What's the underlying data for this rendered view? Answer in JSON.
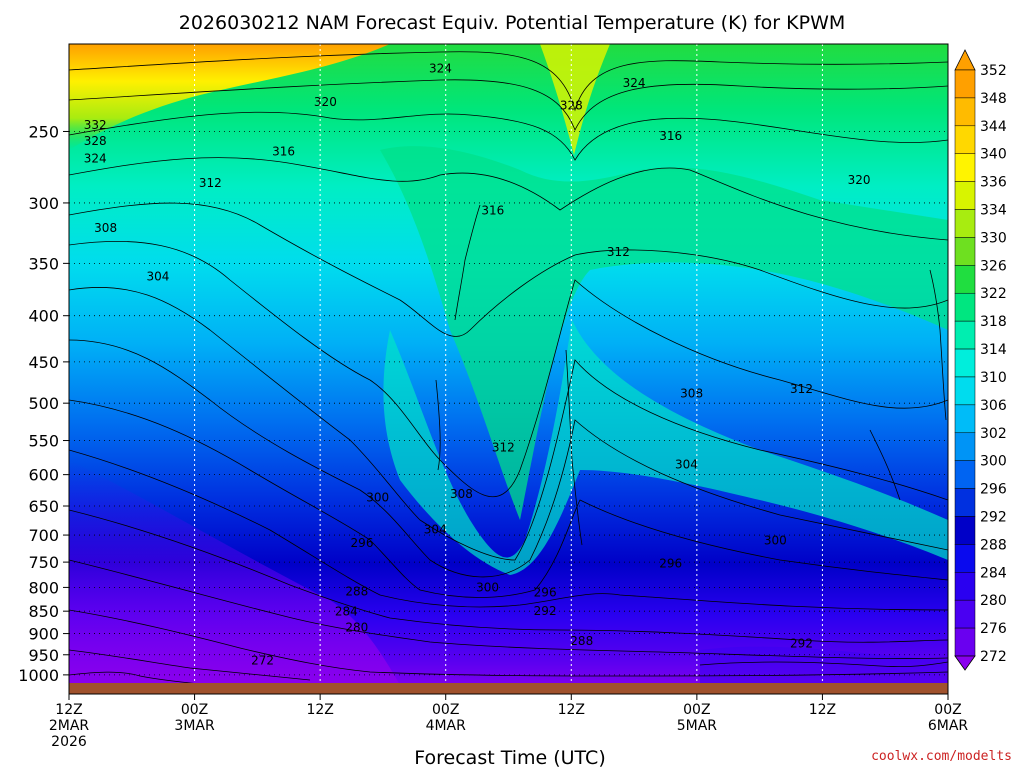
{
  "title": "2026030212 NAM Forecast Equiv. Potential Temperature (K) for KPWM",
  "xlabel": "Forecast Time (UTC)",
  "credit": "coolwx.com/modelts",
  "chart_data": {
    "type": "heatmap",
    "title": "2026030212 NAM Forecast Equiv. Potential Temperature (K) for KPWM",
    "xlabel": "Forecast Time (UTC)",
    "ylabel": "",
    "y_axis": "pressure (hPa), inverted",
    "ylim": [
      1050,
      200
    ],
    "x_hours_range": [
      0,
      84
    ],
    "x_ticks": [
      {
        "hour": 0,
        "lines": [
          "12Z",
          "2MAR",
          "2026"
        ]
      },
      {
        "hour": 12,
        "lines": [
          "00Z",
          "3MAR"
        ]
      },
      {
        "hour": 24,
        "lines": [
          "12Z"
        ]
      },
      {
        "hour": 36,
        "lines": [
          "00Z",
          "4MAR"
        ]
      },
      {
        "hour": 48,
        "lines": [
          "12Z"
        ]
      },
      {
        "hour": 60,
        "lines": [
          "00Z",
          "5MAR"
        ]
      },
      {
        "hour": 72,
        "lines": [
          "12Z"
        ]
      },
      {
        "hour": 84,
        "lines": [
          "00Z",
          "6MAR"
        ]
      }
    ],
    "y_ticks": [
      250,
      300,
      350,
      400,
      450,
      500,
      550,
      600,
      650,
      700,
      750,
      800,
      850,
      900,
      950,
      1000
    ],
    "grid": true,
    "colorbar_levels": [
      272,
      276,
      280,
      284,
      288,
      292,
      296,
      300,
      302,
      306,
      310,
      314,
      318,
      322,
      326,
      330,
      334,
      336,
      340,
      344,
      348,
      352
    ],
    "colorbar_colors": [
      "#8a00ee",
      "#6a00f0",
      "#4a00f2",
      "#2a00f0",
      "#0a0aee",
      "#0000c8",
      "#0030e0",
      "#0064f2",
      "#0094f6",
      "#00bcf8",
      "#00dcee",
      "#00eedc",
      "#00eeb0",
      "#00e680",
      "#20de40",
      "#6ee020",
      "#a8ec10",
      "#d8f400",
      "#fff400",
      "#ffd800",
      "#ffbb00",
      "#ffa000"
    ],
    "contour_labels": [
      {
        "hour": 35.5,
        "p": 213,
        "text": "324"
      },
      {
        "hour": 24.5,
        "p": 232,
        "text": "320"
      },
      {
        "hour": 2.5,
        "p": 246,
        "text": "332"
      },
      {
        "hour": 2.5,
        "p": 256,
        "text": "328"
      },
      {
        "hour": 2.5,
        "p": 268,
        "text": "324"
      },
      {
        "hour": 20.5,
        "p": 263,
        "text": "316"
      },
      {
        "hour": 13.5,
        "p": 285,
        "text": "312"
      },
      {
        "hour": 3.5,
        "p": 320,
        "text": "308"
      },
      {
        "hour": 8.5,
        "p": 362,
        "text": "304"
      },
      {
        "hour": 40.5,
        "p": 306,
        "text": "316"
      },
      {
        "hour": 48,
        "p": 234,
        "text": "328"
      },
      {
        "hour": 54,
        "p": 221,
        "text": "324"
      },
      {
        "hour": 57.5,
        "p": 253,
        "text": "316"
      },
      {
        "hour": 75.5,
        "p": 283,
        "text": "320"
      },
      {
        "hour": 52.5,
        "p": 340,
        "text": "312"
      },
      {
        "hour": 59.5,
        "p": 488,
        "text": "308"
      },
      {
        "hour": 70,
        "p": 482,
        "text": "312"
      },
      {
        "hour": 59,
        "p": 585,
        "text": "304"
      },
      {
        "hour": 41.5,
        "p": 560,
        "text": "312"
      },
      {
        "hour": 37.5,
        "p": 630,
        "text": "308"
      },
      {
        "hour": 35,
        "p": 690,
        "text": "304"
      },
      {
        "hour": 29.5,
        "p": 636,
        "text": "300"
      },
      {
        "hour": 28,
        "p": 714,
        "text": "296"
      },
      {
        "hour": 67.5,
        "p": 710,
        "text": "300"
      },
      {
        "hour": 57.5,
        "p": 753,
        "text": "296"
      },
      {
        "hour": 40,
        "p": 800,
        "text": "300"
      },
      {
        "hour": 45.5,
        "p": 810,
        "text": "296"
      },
      {
        "hour": 45.5,
        "p": 850,
        "text": "292"
      },
      {
        "hour": 27.5,
        "p": 808,
        "text": "288"
      },
      {
        "hour": 26.5,
        "p": 851,
        "text": "284"
      },
      {
        "hour": 27.5,
        "p": 886,
        "text": "280"
      },
      {
        "hour": 49,
        "p": 917,
        "text": "288"
      },
      {
        "hour": 70,
        "p": 923,
        "text": "292"
      },
      {
        "hour": 18.5,
        "p": 964,
        "text": "272"
      }
    ]
  }
}
